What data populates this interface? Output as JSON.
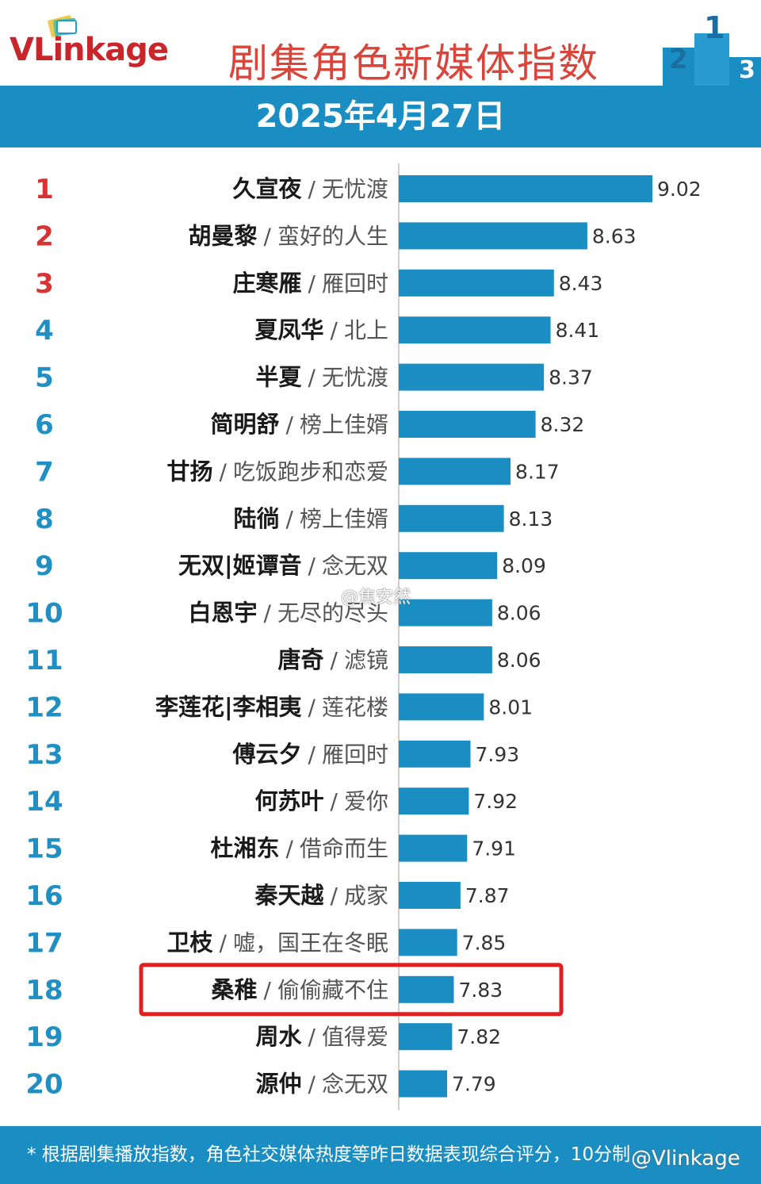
{
  "header": {
    "logo_text": "VLinkage",
    "title": "剧集角色新媒体指数",
    "podium_digits": [
      "2",
      "1",
      "3"
    ]
  },
  "date": "2025年4月27日",
  "colors": {
    "band": "#1a8ec2",
    "bar": "#1a8ec2",
    "rank_top3": "#d63333",
    "rank_rest": "#1f8fc4",
    "title": "#d9453a",
    "highlight_box": "#e02020"
  },
  "chart_data": {
    "type": "bar",
    "orientation": "horizontal",
    "categories": [
      "久宣夜 / 无忧渡",
      "胡曼黎 / 蛮好的人生",
      "庄寒雁 / 雁回时",
      "夏凤华 / 北上",
      "半夏 / 无忧渡",
      "简明舒 / 榜上佳婿",
      "甘扬 / 吃饭跑步和恋爱",
      "陆徜 / 榜上佳婿",
      "无双|姬谭音 / 念无双",
      "白恩宇 / 无尽的尽头",
      "唐奇 / 滤镜",
      "李莲花|李相夷 / 莲花楼",
      "傅云夕 / 雁回时",
      "何苏叶 / 爱你",
      "杜湘东 / 借命而生",
      "秦天越 / 成家",
      "卫枝 / 嘘，国王在冬眠",
      "桑稚 / 偷偷藏不住",
      "周水 / 值得爱",
      "源仲 / 念无双"
    ],
    "rows": [
      {
        "rank": "1",
        "name": "久宣夜",
        "drama": "无忧渡",
        "value": 9.02
      },
      {
        "rank": "2",
        "name": "胡曼黎",
        "drama": "蛮好的人生",
        "value": 8.63
      },
      {
        "rank": "3",
        "name": "庄寒雁",
        "drama": "雁回时",
        "value": 8.43
      },
      {
        "rank": "4",
        "name": "夏凤华",
        "drama": "北上",
        "value": 8.41
      },
      {
        "rank": "5",
        "name": "半夏",
        "drama": "无忧渡",
        "value": 8.37
      },
      {
        "rank": "6",
        "name": "简明舒",
        "drama": "榜上佳婿",
        "value": 8.32
      },
      {
        "rank": "7",
        "name": "甘扬",
        "drama": "吃饭跑步和恋爱",
        "value": 8.17
      },
      {
        "rank": "8",
        "name": "陆徜",
        "drama": "榜上佳婿",
        "value": 8.13
      },
      {
        "rank": "9",
        "name": "无双|姬谭音",
        "drama": "念无双",
        "value": 8.09
      },
      {
        "rank": "10",
        "name": "白恩宇",
        "drama": "无尽的尽头",
        "value": 8.06
      },
      {
        "rank": "11",
        "name": "唐奇",
        "drama": "滤镜",
        "value": 8.06
      },
      {
        "rank": "12",
        "name": "李莲花|李相夷",
        "drama": "莲花楼",
        "value": 8.01
      },
      {
        "rank": "13",
        "name": "傅云夕",
        "drama": "雁回时",
        "value": 7.93
      },
      {
        "rank": "14",
        "name": "何苏叶",
        "drama": "爱你",
        "value": 7.92
      },
      {
        "rank": "15",
        "name": "杜湘东",
        "drama": "借命而生",
        "value": 7.91
      },
      {
        "rank": "16",
        "name": "秦天越",
        "drama": "成家",
        "value": 7.87
      },
      {
        "rank": "17",
        "name": "卫枝",
        "drama": "嘘，国王在冬眠",
        "value": 7.85
      },
      {
        "rank": "18",
        "name": "桑稚",
        "drama": "偷偷藏不住",
        "value": 7.83
      },
      {
        "rank": "19",
        "name": "周水",
        "drama": "值得爱",
        "value": 7.82
      },
      {
        "rank": "20",
        "name": "源仲",
        "drama": "念无双",
        "value": 7.79
      }
    ],
    "value_labels": [
      "9.02",
      "8.63",
      "8.43",
      "8.41",
      "8.37",
      "8.32",
      "8.17",
      "8.13",
      "8.09",
      "8.06",
      "8.06",
      "8.01",
      "7.93",
      "7.92",
      "7.91",
      "7.87",
      "7.85",
      "7.83",
      "7.82",
      "7.79"
    ],
    "separator": "/",
    "highlighted_rank": "18",
    "title": "",
    "xlabel": "",
    "ylabel": "",
    "grid": false,
    "legend": "none"
  },
  "footer": {
    "note": "* 根据剧集播放指数，角色社交媒体热度等昨日数据表现综合评分，10分制"
  },
  "watermarks": {
    "center": "@焦安然",
    "corner": "@Vlinkage"
  }
}
